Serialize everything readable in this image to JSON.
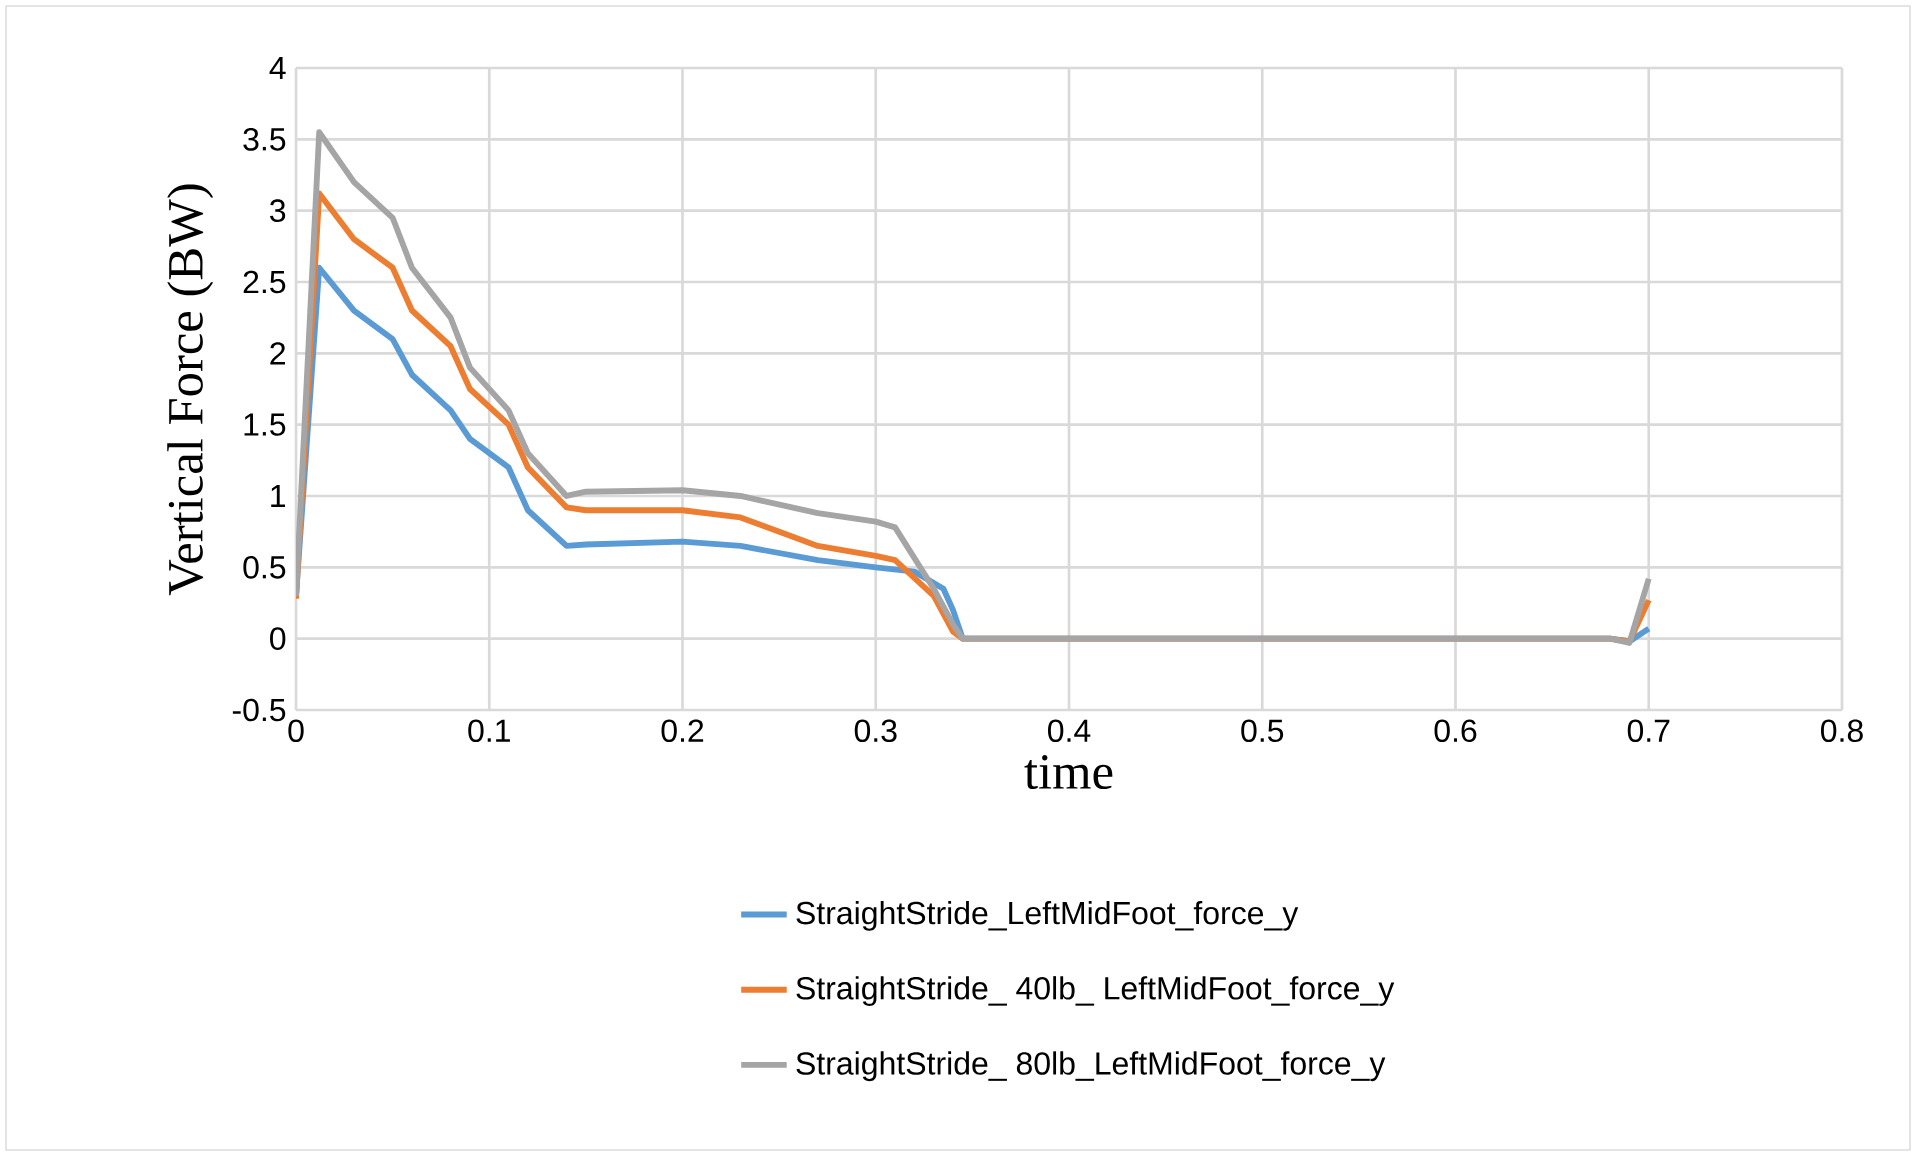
{
  "chart_data": {
    "type": "line",
    "xlabel": "time",
    "ylabel": "Vertical Force (BW)",
    "xlim": [
      0,
      0.8
    ],
    "ylim": [
      -0.5,
      4
    ],
    "xticks": [
      0,
      0.1,
      0.2,
      0.3,
      0.4,
      0.5,
      0.6,
      0.7,
      0.8
    ],
    "yticks": [
      -0.5,
      0,
      0.5,
      1,
      1.5,
      2,
      2.5,
      3,
      3.5,
      4
    ],
    "grid": true,
    "legend": "bottom",
    "line_style": "solid",
    "marker": "none",
    "series": [
      {
        "name": "StraightStride_LeftMidFoot_force_y",
        "color": "#5b9bd5",
        "x": [
          0,
          0.012,
          0.03,
          0.05,
          0.06,
          0.08,
          0.09,
          0.11,
          0.12,
          0.14,
          0.15,
          0.2,
          0.23,
          0.27,
          0.3,
          0.32,
          0.335,
          0.34,
          0.345,
          0.35,
          0.5,
          0.68,
          0.69,
          0.7
        ],
        "values": [
          0.3,
          2.6,
          2.3,
          2.1,
          1.85,
          1.6,
          1.4,
          1.2,
          0.9,
          0.65,
          0.66,
          0.68,
          0.65,
          0.55,
          0.5,
          0.47,
          0.35,
          0.2,
          0.0,
          0,
          0,
          0,
          -0.02,
          0.07
        ]
      },
      {
        "name": "StraightStride_ 40lb_ LeftMidFoot_force_y",
        "color": "#ed7d31",
        "x": [
          0,
          0.012,
          0.03,
          0.05,
          0.06,
          0.08,
          0.09,
          0.11,
          0.12,
          0.14,
          0.15,
          0.2,
          0.23,
          0.27,
          0.3,
          0.31,
          0.33,
          0.34,
          0.345,
          0.35,
          0.5,
          0.68,
          0.69,
          0.7
        ],
        "values": [
          0.28,
          3.12,
          2.8,
          2.6,
          2.3,
          2.05,
          1.75,
          1.5,
          1.2,
          0.92,
          0.9,
          0.9,
          0.85,
          0.65,
          0.58,
          0.55,
          0.3,
          0.05,
          0,
          0,
          0,
          0,
          -0.02,
          0.27
        ]
      },
      {
        "name": "StraightStride_ 80lb_LeftMidFoot_force_y",
        "color": "#a5a5a5",
        "x": [
          0,
          0.012,
          0.03,
          0.05,
          0.06,
          0.08,
          0.09,
          0.11,
          0.12,
          0.14,
          0.15,
          0.2,
          0.23,
          0.27,
          0.3,
          0.31,
          0.33,
          0.34,
          0.345,
          0.35,
          0.5,
          0.68,
          0.69,
          0.7
        ],
        "values": [
          0.3,
          3.55,
          3.2,
          2.95,
          2.6,
          2.25,
          1.9,
          1.6,
          1.3,
          1.0,
          1.03,
          1.04,
          1.0,
          0.88,
          0.82,
          0.78,
          0.35,
          0.1,
          0,
          0,
          0,
          0,
          -0.03,
          0.42
        ]
      }
    ]
  }
}
